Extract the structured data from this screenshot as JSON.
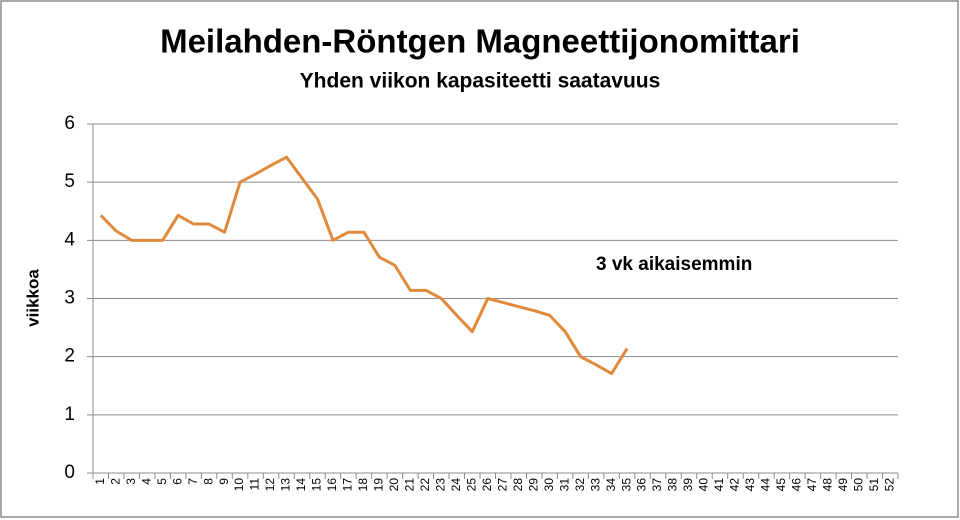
{
  "chart_data": {
    "type": "line",
    "title": "Meilahden-Röntgen Magneettijonomittari",
    "subtitle": "Yhden viikon kapasiteetti saatavuus",
    "y_label": "viikkoa",
    "annotation": "3 vk aikaisemmin",
    "categories": [
      "1",
      "2",
      "3",
      "4",
      "5",
      "6",
      "7",
      "8",
      "9",
      "10",
      "11",
      "12",
      "13",
      "14",
      "15",
      "16",
      "17",
      "18",
      "19",
      "20",
      "21",
      "22",
      "23",
      "24",
      "25",
      "26",
      "27",
      "28",
      "29",
      "30",
      "31",
      "32",
      "33",
      "34",
      "35",
      "36",
      "37",
      "38",
      "39",
      "40",
      "41",
      "42",
      "43",
      "44",
      "45",
      "46",
      "47",
      "48",
      "49",
      "50",
      "51",
      "52"
    ],
    "series": [
      {
        "name": "3 vk aikaisemmin",
        "color": "#e08a3c",
        "values": [
          4.43,
          4.16,
          4.0,
          4.0,
          4.0,
          4.43,
          4.28,
          4.28,
          4.14,
          5.0,
          5.14,
          5.29,
          5.43,
          5.07,
          4.71,
          4.0,
          4.14,
          4.14,
          3.71,
          3.57,
          3.14,
          3.14,
          3.0,
          2.71,
          2.43,
          3.0,
          2.93,
          2.86,
          2.79,
          2.71,
          2.43,
          2.0,
          1.86,
          1.71,
          2.14,
          null,
          null,
          null,
          null,
          null,
          null,
          null,
          null,
          null,
          null,
          null,
          null,
          null,
          null,
          null,
          null,
          null
        ]
      }
    ],
    "ylim": [
      0,
      6
    ],
    "yticks": [
      0,
      1,
      2,
      3,
      4,
      5,
      6
    ],
    "grid": true
  }
}
